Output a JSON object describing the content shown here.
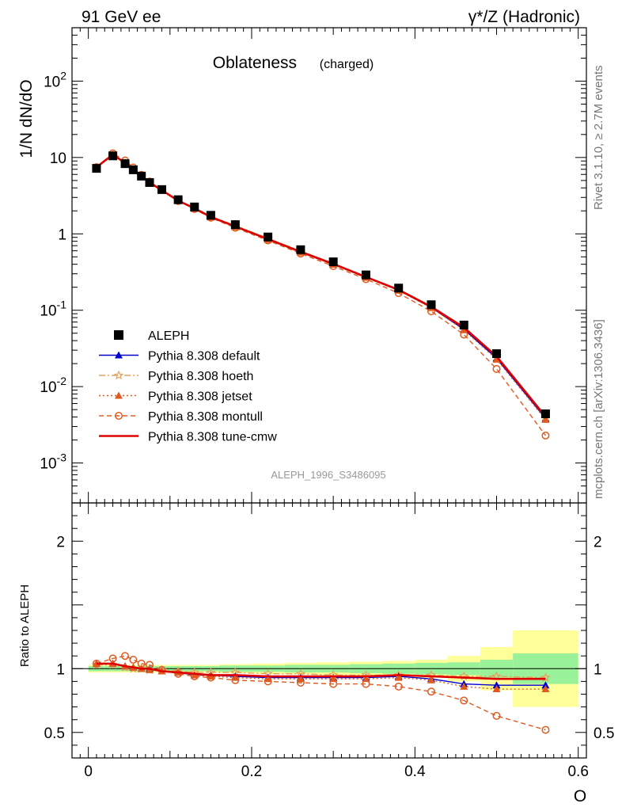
{
  "header": {
    "left_label": "91 GeV ee",
    "right_label": "γ*/Z (Hadronic)"
  },
  "side_labels": {
    "rivet": "Rivet 3.1.10, ≥ 2.7M events",
    "mcplots": "mcplots.cern.ch [arXiv:1306.3436]"
  },
  "chart_data": {
    "type": "line",
    "title": "Oblateness",
    "subtitle": "(charged)",
    "analysis_id": "ALEPH_1996_S3486095",
    "xlabel": "O",
    "ylabel": "1/N dN/dO",
    "ratio_ylabel": "Ratio to ALEPH",
    "xlim": [
      -0.02,
      0.61
    ],
    "ylim": [
      0.0003,
      500
    ],
    "yscale": "log",
    "ratio_ylim": [
      0.3,
      2.3
    ],
    "x_ticks": [
      "0",
      "0.2",
      "0.4",
      "0.6"
    ],
    "y_ticks": [
      "10^-3",
      "10^-2",
      "10^-1",
      "1",
      "10",
      "10^2"
    ],
    "ratio_ticks": [
      "0.5",
      "1",
      "2"
    ],
    "legend_position": "lower-left",
    "x": [
      0.01,
      0.03,
      0.045,
      0.055,
      0.065,
      0.075,
      0.09,
      0.11,
      0.13,
      0.15,
      0.18,
      0.22,
      0.26,
      0.3,
      0.34,
      0.38,
      0.42,
      0.46,
      0.5,
      0.56
    ],
    "data": {
      "name": "ALEPH",
      "values": [
        7.2,
        10.5,
        8.3,
        6.9,
        5.7,
        4.7,
        3.8,
        2.8,
        2.25,
        1.75,
        1.32,
        0.91,
        0.62,
        0.43,
        0.29,
        0.195,
        0.118,
        0.064,
        0.027,
        0.0044
      ]
    },
    "series": [
      {
        "name": "Pythia 8.308 default",
        "color": "#0000cc",
        "marker": "triangle",
        "dash": "solid",
        "ratio": [
          1.04,
          1.04,
          1.02,
          1.01,
          1.0,
          1.0,
          0.98,
          0.97,
          0.95,
          0.95,
          0.94,
          0.93,
          0.93,
          0.93,
          0.93,
          0.94,
          0.92,
          0.88,
          0.87,
          0.87
        ]
      },
      {
        "name": "Pythia 8.308 hoeth",
        "color": "#e6a05a",
        "marker": "star",
        "dash": "dashdot",
        "ratio": [
          1.03,
          1.03,
          1.01,
          1.0,
          1.0,
          0.99,
          0.99,
          0.98,
          0.97,
          0.97,
          0.97,
          0.96,
          0.96,
          0.95,
          0.95,
          0.95,
          0.95,
          0.94,
          0.94,
          0.93
        ]
      },
      {
        "name": "Pythia 8.308 jetset",
        "color": "#e05a20",
        "marker": "triangle",
        "dash": "dotted",
        "ratio": [
          1.04,
          1.04,
          1.02,
          1.01,
          1.0,
          0.99,
          0.98,
          0.97,
          0.95,
          0.94,
          0.93,
          0.92,
          0.92,
          0.92,
          0.92,
          0.93,
          0.91,
          0.86,
          0.84,
          0.84
        ]
      },
      {
        "name": "Pythia 8.308 montull",
        "color": "#e05a20",
        "marker": "circle",
        "dash": "dashed",
        "ratio": [
          1.04,
          1.08,
          1.1,
          1.07,
          1.04,
          1.03,
          0.99,
          0.96,
          0.94,
          0.93,
          0.91,
          0.9,
          0.89,
          0.88,
          0.88,
          0.86,
          0.82,
          0.75,
          0.63,
          0.52
        ]
      },
      {
        "name": "Pythia 8.308 tune-cmw",
        "color": "#dd0000",
        "marker": "none",
        "dash": "solid",
        "ratio": [
          1.04,
          1.04,
          1.02,
          1.01,
          1.0,
          1.0,
          0.98,
          0.97,
          0.96,
          0.95,
          0.95,
          0.94,
          0.94,
          0.94,
          0.94,
          0.95,
          0.94,
          0.93,
          0.92,
          0.92
        ]
      }
    ],
    "uncertainty_bands": {
      "edges": [
        0.0,
        0.02,
        0.04,
        0.05,
        0.06,
        0.07,
        0.08,
        0.1,
        0.12,
        0.14,
        0.16,
        0.2,
        0.24,
        0.28,
        0.32,
        0.36,
        0.4,
        0.44,
        0.48,
        0.52,
        0.6
      ],
      "inner": [
        0.02,
        0.02,
        0.02,
        0.02,
        0.02,
        0.02,
        0.02,
        0.02,
        0.02,
        0.02,
        0.025,
        0.025,
        0.03,
        0.03,
        0.035,
        0.04,
        0.045,
        0.05,
        0.07,
        0.12
      ],
      "outer": [
        0.03,
        0.03,
        0.03,
        0.03,
        0.03,
        0.03,
        0.03,
        0.03,
        0.03,
        0.03,
        0.035,
        0.04,
        0.045,
        0.05,
        0.055,
        0.06,
        0.07,
        0.1,
        0.17,
        0.3
      ]
    }
  }
}
